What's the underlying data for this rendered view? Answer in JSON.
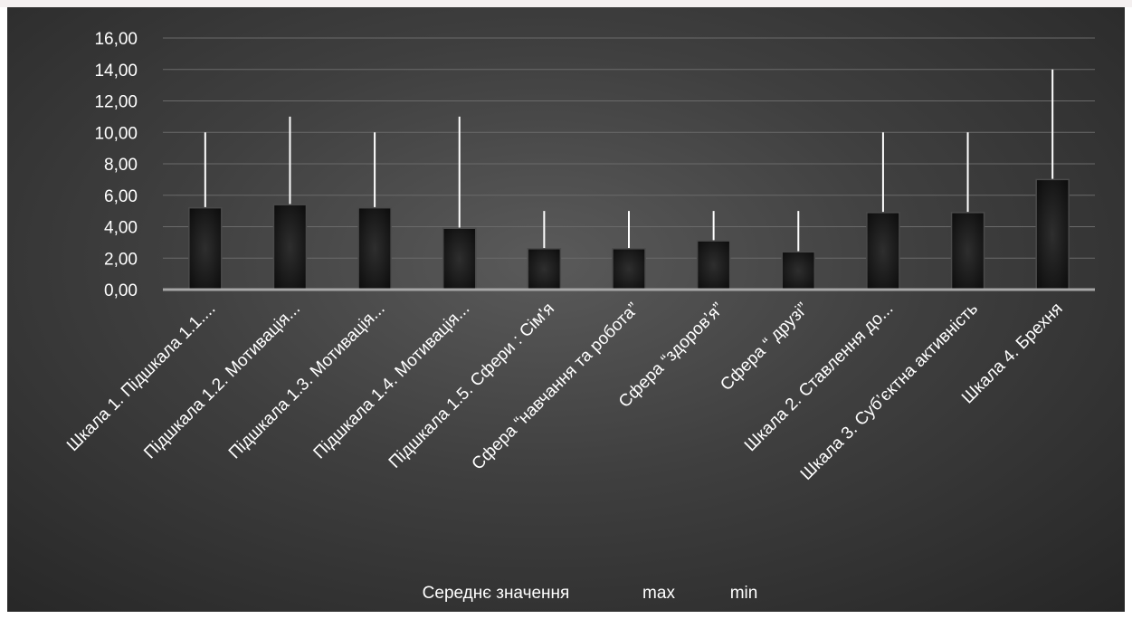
{
  "chart_data": {
    "type": "bar",
    "categories": [
      "Шкала 1. Підшкала 1.1....",
      "Підшкала 1.2. Мотивація...",
      "Підшкала 1.3. Мотивація...",
      "Підшкала 1.4. Мотивація...",
      "Підшкала 1.5. Сфери : Сім'я",
      "Сфера “навчання та робота”",
      "Сфера “здоров’я”",
      "Сфера “ друзі”",
      "Шкала 2. Ставлення до...",
      "Шкала 3. Суб’єктна активність",
      "Шкала 4. Брехня"
    ],
    "series": [
      {
        "name": "Середнє значення",
        "values": [
          5.2,
          5.4,
          5.2,
          3.9,
          2.6,
          2.6,
          3.1,
          2.4,
          4.9,
          4.9,
          7.0
        ]
      },
      {
        "name": "max",
        "values": [
          10,
          11,
          10,
          11,
          5,
          5,
          5,
          5,
          10,
          10,
          14
        ]
      },
      {
        "name": "min",
        "values": [
          0,
          0,
          0,
          0,
          0,
          0,
          0,
          0,
          0,
          0,
          0
        ]
      }
    ],
    "yticks": [
      "0,00",
      "2,00",
      "4,00",
      "6,00",
      "8,00",
      "10,00",
      "12,00",
      "14,00",
      "16,00"
    ],
    "ylim": [
      0,
      16
    ],
    "grid": true,
    "legend_position": "bottom",
    "colors": {
      "background": "#3f3f3f",
      "bar": "#141414",
      "bar_edge": "#4a4a4a",
      "whisker": "#ffffff",
      "grid": "#6a6a6a",
      "axis": "#a6a6a6",
      "text": "#ffffff"
    }
  }
}
